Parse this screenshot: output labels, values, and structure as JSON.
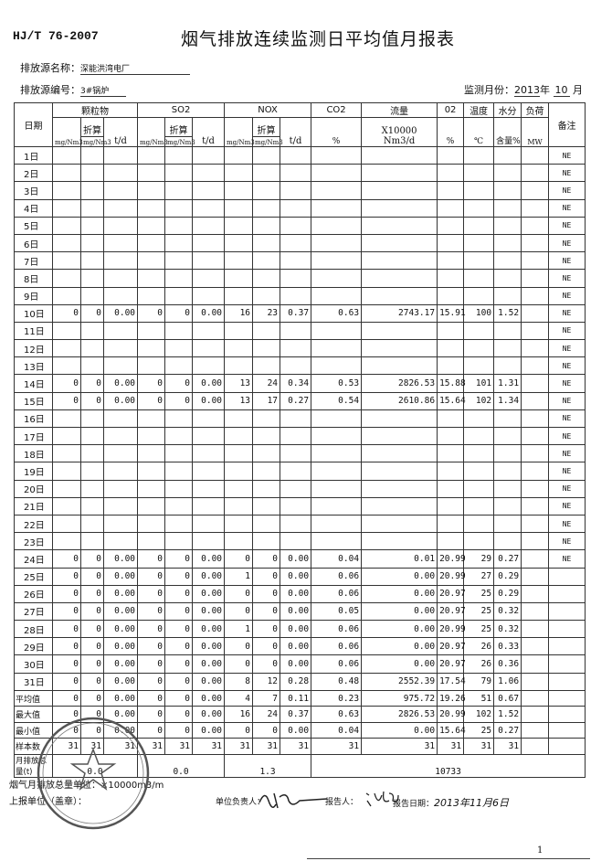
{
  "header": {
    "standard": "HJ/T 76-2007",
    "title": "烟气排放连续监测日平均值月报表",
    "source_name_label": "排放源名称：",
    "source_name": "深能洪湾电厂",
    "source_no_label": "排放源编号：",
    "source_no": "3#锅炉",
    "month_label": "监测月份：",
    "year": "2013",
    "year_suffix": "年",
    "month": "10",
    "month_suffix": "月"
  },
  "columns": {
    "date": "日期",
    "pm": "颗粒物",
    "so2": "SO2",
    "nox": "NOX",
    "co2": "CO2",
    "flow": "流量",
    "o2": "02",
    "temp": "温度",
    "water": "水分",
    "load": "负荷",
    "note": "备注",
    "conv": "折算",
    "mg": "mg/Nm3",
    "td": "t/d",
    "pct": "%",
    "flow_unit1": "X10000",
    "flow_unit2": "Nm3/d",
    "temp_unit": "℃",
    "water_unit": "含量%",
    "load_unit": "MW"
  },
  "rows": [
    {
      "date": "1日",
      "v": [
        "",
        "",
        "",
        "",
        "",
        "",
        "",
        "",
        "",
        "",
        "",
        "",
        "",
        "",
        "",
        "NE"
      ]
    },
    {
      "date": "2日",
      "v": [
        "",
        "",
        "",
        "",
        "",
        "",
        "",
        "",
        "",
        "",
        "",
        "",
        "",
        "",
        "",
        "NE"
      ]
    },
    {
      "date": "3日",
      "v": [
        "",
        "",
        "",
        "",
        "",
        "",
        "",
        "",
        "",
        "",
        "",
        "",
        "",
        "",
        "",
        "NE"
      ]
    },
    {
      "date": "4日",
      "v": [
        "",
        "",
        "",
        "",
        "",
        "",
        "",
        "",
        "",
        "",
        "",
        "",
        "",
        "",
        "",
        "NE"
      ]
    },
    {
      "date": "5日",
      "v": [
        "",
        "",
        "",
        "",
        "",
        "",
        "",
        "",
        "",
        "",
        "",
        "",
        "",
        "",
        "",
        "NE"
      ]
    },
    {
      "date": "6日",
      "v": [
        "",
        "",
        "",
        "",
        "",
        "",
        "",
        "",
        "",
        "",
        "",
        "",
        "",
        "",
        "",
        "NE"
      ]
    },
    {
      "date": "7日",
      "v": [
        "",
        "",
        "",
        "",
        "",
        "",
        "",
        "",
        "",
        "",
        "",
        "",
        "",
        "",
        "",
        "NE"
      ]
    },
    {
      "date": "8日",
      "v": [
        "",
        "",
        "",
        "",
        "",
        "",
        "",
        "",
        "",
        "",
        "",
        "",
        "",
        "",
        "",
        "NE"
      ]
    },
    {
      "date": "9日",
      "v": [
        "",
        "",
        "",
        "",
        "",
        "",
        "",
        "",
        "",
        "",
        "",
        "",
        "",
        "",
        "",
        "NE"
      ]
    },
    {
      "date": "10日",
      "v": [
        "0",
        "0",
        "0.00",
        "0",
        "0",
        "0.00",
        "16",
        "23",
        "0.37",
        "0.63",
        "2743.17",
        "15.91",
        "100",
        "1.52",
        "",
        "NE"
      ]
    },
    {
      "date": "11日",
      "v": [
        "",
        "",
        "",
        "",
        "",
        "",
        "",
        "",
        "",
        "",
        "",
        "",
        "",
        "",
        "",
        "NE"
      ]
    },
    {
      "date": "12日",
      "v": [
        "",
        "",
        "",
        "",
        "",
        "",
        "",
        "",
        "",
        "",
        "",
        "",
        "",
        "",
        "",
        "NE"
      ]
    },
    {
      "date": "13日",
      "v": [
        "",
        "",
        "",
        "",
        "",
        "",
        "",
        "",
        "",
        "",
        "",
        "",
        "",
        "",
        "",
        "NE"
      ]
    },
    {
      "date": "14日",
      "v": [
        "0",
        "0",
        "0.00",
        "0",
        "0",
        "0.00",
        "13",
        "24",
        "0.34",
        "0.53",
        "2826.53",
        "15.88",
        "101",
        "1.31",
        "",
        "NE"
      ]
    },
    {
      "date": "15日",
      "v": [
        "0",
        "0",
        "0.00",
        "0",
        "0",
        "0.00",
        "13",
        "17",
        "0.27",
        "0.54",
        "2610.86",
        "15.64",
        "102",
        "1.34",
        "",
        "NE"
      ]
    },
    {
      "date": "16日",
      "v": [
        "",
        "",
        "",
        "",
        "",
        "",
        "",
        "",
        "",
        "",
        "",
        "",
        "",
        "",
        "",
        "NE"
      ]
    },
    {
      "date": "17日",
      "v": [
        "",
        "",
        "",
        "",
        "",
        "",
        "",
        "",
        "",
        "",
        "",
        "",
        "",
        "",
        "",
        "NE"
      ]
    },
    {
      "date": "18日",
      "v": [
        "",
        "",
        "",
        "",
        "",
        "",
        "",
        "",
        "",
        "",
        "",
        "",
        "",
        "",
        "",
        "NE"
      ]
    },
    {
      "date": "19日",
      "v": [
        "",
        "",
        "",
        "",
        "",
        "",
        "",
        "",
        "",
        "",
        "",
        "",
        "",
        "",
        "",
        "NE"
      ]
    },
    {
      "date": "20日",
      "v": [
        "",
        "",
        "",
        "",
        "",
        "",
        "",
        "",
        "",
        "",
        "",
        "",
        "",
        "",
        "",
        "NE"
      ]
    },
    {
      "date": "21日",
      "v": [
        "",
        "",
        "",
        "",
        "",
        "",
        "",
        "",
        "",
        "",
        "",
        "",
        "",
        "",
        "",
        "NE"
      ]
    },
    {
      "date": "22日",
      "v": [
        "",
        "",
        "",
        "",
        "",
        "",
        "",
        "",
        "",
        "",
        "",
        "",
        "",
        "",
        "",
        "NE"
      ]
    },
    {
      "date": "23日",
      "v": [
        "",
        "",
        "",
        "",
        "",
        "",
        "",
        "",
        "",
        "",
        "",
        "",
        "",
        "",
        "",
        "NE"
      ]
    },
    {
      "date": "24日",
      "v": [
        "0",
        "0",
        "0.00",
        "0",
        "0",
        "0.00",
        "0",
        "0",
        "0.00",
        "0.04",
        "0.01",
        "20.99",
        "29",
        "0.27",
        "",
        "NE"
      ]
    },
    {
      "date": "25日",
      "v": [
        "0",
        "0",
        "0.00",
        "0",
        "0",
        "0.00",
        "1",
        "0",
        "0.00",
        "0.06",
        "0.00",
        "20.99",
        "27",
        "0.29",
        "",
        ""
      ]
    },
    {
      "date": "26日",
      "v": [
        "0",
        "0",
        "0.00",
        "0",
        "0",
        "0.00",
        "0",
        "0",
        "0.00",
        "0.06",
        "0.00",
        "20.97",
        "25",
        "0.29",
        "",
        ""
      ]
    },
    {
      "date": "27日",
      "v": [
        "0",
        "0",
        "0.00",
        "0",
        "0",
        "0.00",
        "0",
        "0",
        "0.00",
        "0.05",
        "0.00",
        "20.97",
        "25",
        "0.32",
        "",
        ""
      ]
    },
    {
      "date": "28日",
      "v": [
        "0",
        "0",
        "0.00",
        "0",
        "0",
        "0.00",
        "1",
        "0",
        "0.00",
        "0.06",
        "0.00",
        "20.99",
        "25",
        "0.32",
        "",
        ""
      ]
    },
    {
      "date": "29日",
      "v": [
        "0",
        "0",
        "0.00",
        "0",
        "0",
        "0.00",
        "0",
        "0",
        "0.00",
        "0.06",
        "0.00",
        "20.97",
        "26",
        "0.33",
        "",
        ""
      ]
    },
    {
      "date": "30日",
      "v": [
        "0",
        "0",
        "0.00",
        "0",
        "0",
        "0.00",
        "0",
        "0",
        "0.00",
        "0.06",
        "0.00",
        "20.97",
        "26",
        "0.36",
        "",
        ""
      ]
    },
    {
      "date": "31日",
      "v": [
        "0",
        "0",
        "0.00",
        "0",
        "0",
        "0.00",
        "8",
        "12",
        "0.28",
        "0.48",
        "2552.39",
        "17.54",
        "79",
        "1.06",
        "",
        ""
      ]
    }
  ],
  "summary": [
    {
      "date": "平均值",
      "v": [
        "0",
        "0",
        "0.00",
        "0",
        "0",
        "0.00",
        "4",
        "7",
        "0.11",
        "0.23",
        "975.72",
        "19.26",
        "51",
        "0.67",
        "",
        ""
      ]
    },
    {
      "date": "最大值",
      "v": [
        "0",
        "0",
        "0.00",
        "0",
        "0",
        "0.00",
        "16",
        "24",
        "0.37",
        "0.63",
        "2826.53",
        "20.99",
        "102",
        "1.52",
        "",
        ""
      ]
    },
    {
      "date": "最小值",
      "v": [
        "0",
        "0",
        "0.00",
        "0",
        "0",
        "0.00",
        "0",
        "0",
        "0.00",
        "0.04",
        "0.00",
        "15.64",
        "25",
        "0.27",
        "",
        ""
      ]
    },
    {
      "date": "样本数",
      "v": [
        "31",
        "31",
        "31",
        "31",
        "31",
        "31",
        "31",
        "31",
        "31",
        "31",
        "31",
        "31",
        "31",
        "31",
        "",
        ""
      ]
    }
  ],
  "monthly_total": {
    "label": "月排放总量(t)",
    "pm": "0.0",
    "so2": "0.0",
    "nox": "1.3",
    "flow": "10733"
  },
  "footer": {
    "flow_unit_note": "烟气月排放总量单位：×10000m3/m",
    "reporting_unit": "上报单位（盖章）：",
    "responsible_label": "单位负责人：",
    "reporter_label": "报告人：",
    "report_date_label": "报告日期：",
    "report_date": "2013年11月6日",
    "page": "1"
  }
}
